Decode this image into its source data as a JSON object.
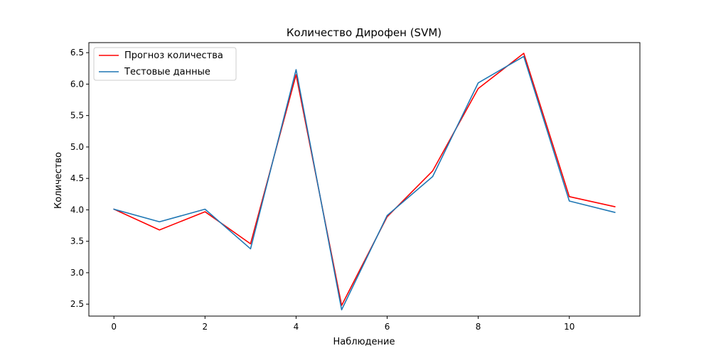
{
  "chart_data": {
    "type": "line",
    "title": "Количество Дирофен  (SVM)",
    "xlabel": "Наблюдение",
    "ylabel": "Количество",
    "xlim": [
      -0.55,
      11.55
    ],
    "ylim": [
      2.31,
      6.66
    ],
    "xticks": [
      0,
      2,
      4,
      6,
      8,
      10
    ],
    "yticks": [
      2.5,
      3.0,
      3.5,
      4.0,
      4.5,
      5.0,
      5.5,
      6.0,
      6.5
    ],
    "x": [
      0,
      1,
      2,
      3,
      4,
      5,
      6,
      7,
      8,
      9,
      10,
      11
    ],
    "series": [
      {
        "name": "Прогноз количества",
        "color": "#ff0000",
        "values": [
          4.01,
          3.68,
          3.97,
          3.46,
          6.15,
          2.48,
          3.89,
          4.62,
          5.93,
          6.49,
          4.21,
          4.05
        ]
      },
      {
        "name": "Тестовые данные",
        "color": "#1f77b4",
        "values": [
          4.01,
          3.81,
          4.01,
          3.38,
          6.23,
          2.41,
          3.91,
          4.53,
          6.02,
          6.44,
          4.14,
          3.96
        ]
      }
    ],
    "legend_position": "top-left",
    "grid": false
  }
}
